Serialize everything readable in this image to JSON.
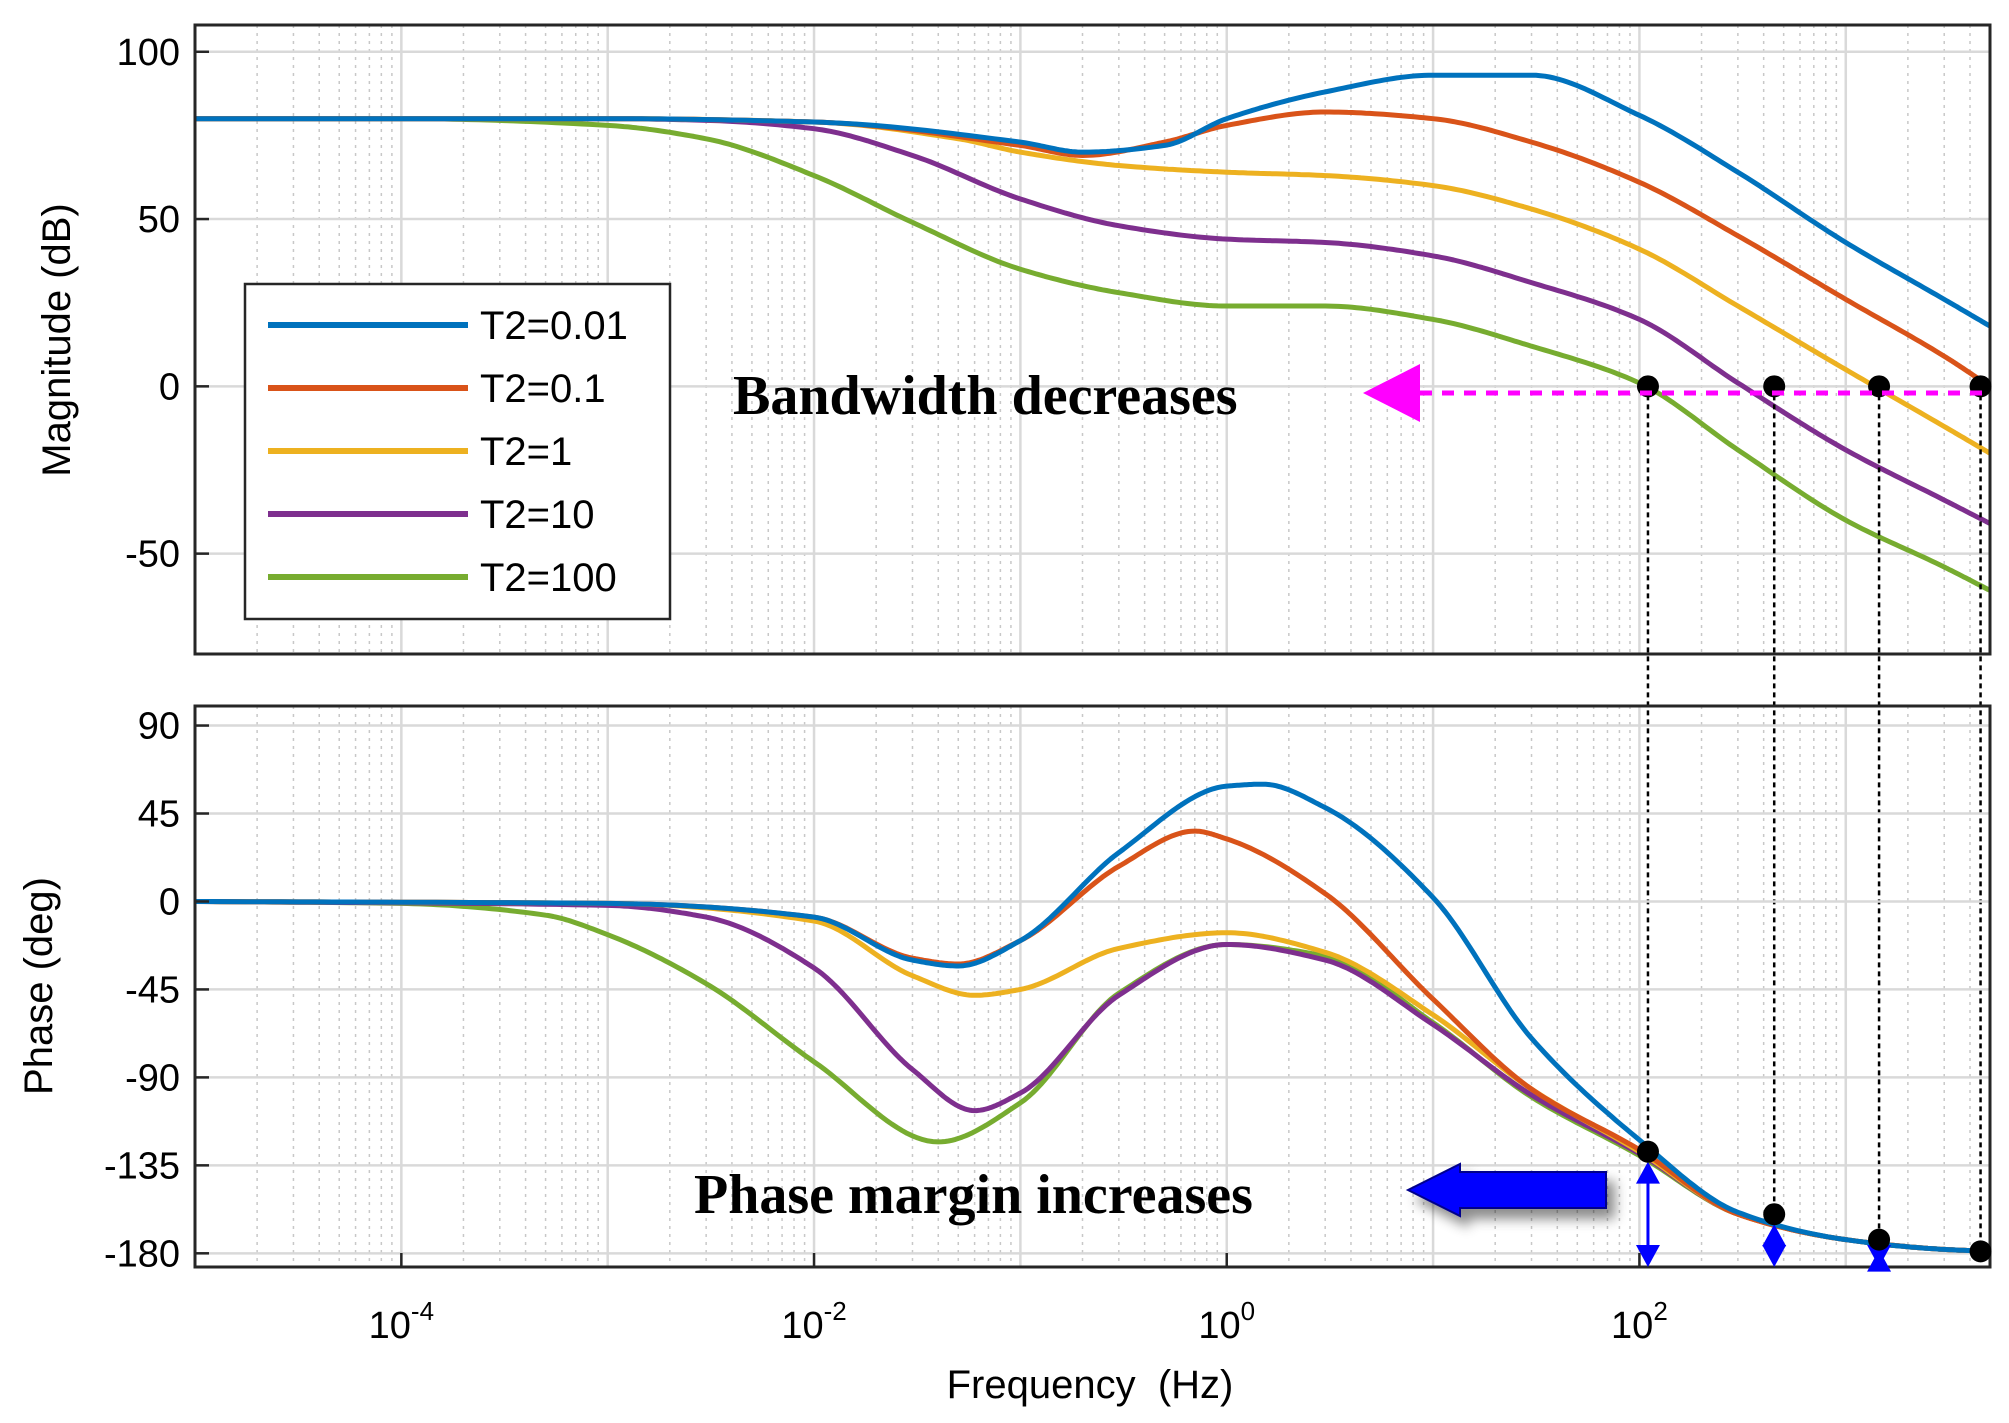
{
  "chart_data": [
    {
      "type": "line",
      "panel": "magnitude",
      "ylabel": "Magnitude (dB)",
      "xscale": "log",
      "xlim": [
        1e-05,
        5000
      ],
      "ylim": [
        -80,
        108
      ],
      "yticks": [
        100,
        50,
        0,
        -50
      ],
      "ytick_labels": [
        "100",
        "50",
        "0",
        "-50"
      ],
      "legend_position": "left-middle",
      "series": [
        {
          "name": "T2=0.01",
          "color": "#0072BD",
          "x": [
            1e-05,
            0.001,
            0.01,
            0.1,
            0.2,
            0.5,
            1,
            3,
            10,
            30,
            100,
            300,
            1000,
            3000,
            5000
          ],
          "y": [
            80,
            80,
            79,
            73,
            70,
            72,
            80,
            88,
            93,
            93,
            81,
            64,
            43,
            26,
            18
          ]
        },
        {
          "name": "T2=0.1",
          "color": "#D95319",
          "x": [
            1e-05,
            0.001,
            0.01,
            0.1,
            0.2,
            0.5,
            1,
            3,
            10,
            30,
            100,
            300,
            1000,
            3000,
            5000
          ],
          "y": [
            80,
            80,
            79,
            72,
            69,
            73,
            78,
            82,
            80,
            73,
            61,
            45,
            26,
            9,
            0
          ]
        },
        {
          "name": "T2=1",
          "color": "#EDB120",
          "x": [
            1e-05,
            0.001,
            0.01,
            0.05,
            0.1,
            0.3,
            1,
            3,
            10,
            30,
            100,
            300,
            1000,
            3000,
            5000
          ],
          "y": [
            80,
            80,
            79,
            74,
            70,
            66,
            64,
            63,
            60,
            53,
            41,
            24,
            5,
            -12,
            -20
          ]
        },
        {
          "name": "T2=10",
          "color": "#7E2F8E",
          "x": [
            1e-05,
            0.001,
            0.003,
            0.01,
            0.03,
            0.1,
            0.3,
            1,
            3,
            10,
            30,
            100,
            300,
            1000,
            3000,
            5000
          ],
          "y": [
            80,
            80,
            79.5,
            77,
            69,
            56,
            48,
            44,
            43,
            39,
            31,
            20,
            1,
            -19,
            -34,
            -41
          ]
        },
        {
          "name": "T2=100",
          "color": "#77AC30",
          "x": [
            1e-05,
            0.0001,
            0.001,
            0.003,
            0.01,
            0.03,
            0.1,
            0.3,
            1,
            3,
            10,
            30,
            100,
            300,
            1000,
            3000,
            5000
          ],
          "y": [
            80,
            80,
            78,
            74,
            63,
            49,
            35,
            28,
            24,
            24,
            20,
            12,
            1,
            -19,
            -40,
            -54,
            -61
          ]
        }
      ],
      "markers": [
        {
          "x": 110,
          "y": 0
        },
        {
          "x": 450,
          "y": 0
        },
        {
          "x": 1450,
          "y": 0
        },
        {
          "x": 4500,
          "y": 0
        }
      ],
      "annotation": {
        "text": "Bandwidth decreases",
        "arrow_color": "#FF00FF",
        "arrow_direction": "left"
      }
    },
    {
      "type": "line",
      "panel": "phase",
      "xlabel": "Frequency  (Hz)",
      "ylabel": "Phase (deg)",
      "xscale": "log",
      "xlim": [
        1e-05,
        5000
      ],
      "ylim": [
        -187,
        100
      ],
      "yticks": [
        90,
        45,
        0,
        -45,
        -90,
        -135,
        -180
      ],
      "ytick_labels": [
        "90",
        "45",
        "0",
        "-45",
        "-90",
        "-135",
        "-180"
      ],
      "xticks": [
        0.0001,
        0.01,
        1,
        100
      ],
      "xtick_bases": [
        "10",
        "10",
        "10",
        "10"
      ],
      "xtick_exponents": [
        "-4",
        "-2",
        "0",
        "2"
      ],
      "series": [
        {
          "name": "T2=0.01",
          "x": [
            1e-05,
            0.001,
            0.01,
            0.03,
            0.05,
            0.1,
            0.3,
            1,
            1.5,
            3,
            10,
            30,
            100,
            300,
            1000,
            3000,
            5000
          ],
          "y": [
            0,
            -1,
            -8,
            -30,
            -33,
            -20,
            25,
            59,
            60,
            48,
            2,
            -70,
            -122,
            -159,
            -173,
            -178,
            -179
          ]
        },
        {
          "name": "T2=0.1",
          "x": [
            1e-05,
            0.001,
            0.01,
            0.03,
            0.05,
            0.1,
            0.3,
            0.7,
            1,
            3,
            10,
            30,
            100,
            300,
            1000,
            3000,
            5000
          ],
          "y": [
            0,
            -1,
            -8,
            -29,
            -32,
            -20,
            18,
            36,
            32,
            4,
            -50,
            -96,
            -127,
            -160,
            -173,
            -178,
            -179
          ]
        },
        {
          "name": "T2=1",
          "x": [
            1e-05,
            0.001,
            0.01,
            0.03,
            0.06,
            0.1,
            0.3,
            1,
            3,
            10,
            30,
            100,
            300,
            1000,
            3000,
            5000
          ],
          "y": [
            0,
            -1,
            -10,
            -38,
            -48,
            -45,
            -24,
            -16,
            -26,
            -58,
            -96,
            -128,
            -160,
            -173,
            -178,
            -179
          ]
        },
        {
          "name": "T2=10",
          "x": [
            1e-05,
            0.001,
            0.003,
            0.01,
            0.03,
            0.06,
            0.1,
            0.3,
            1,
            3,
            10,
            30,
            100,
            300,
            1000,
            3000,
            5000
          ],
          "y": [
            0,
            -2,
            -8,
            -34,
            -86,
            -107,
            -98,
            -48,
            -22,
            -30,
            -63,
            -99,
            -129,
            -160,
            -173,
            -178,
            -179
          ]
        },
        {
          "name": "T2=100",
          "x": [
            1e-05,
            0.0001,
            0.0005,
            0.001,
            0.003,
            0.01,
            0.04,
            0.1,
            0.3,
            1,
            3,
            10,
            30,
            100,
            300,
            1000,
            3000,
            5000
          ],
          "y": [
            0,
            -1,
            -7,
            -17,
            -42,
            -82,
            -123,
            -103,
            -47,
            -22,
            -28,
            -62,
            -100,
            -130,
            -160,
            -173,
            -178,
            -179
          ]
        }
      ],
      "markers": [
        {
          "x": 110,
          "y": -128
        },
        {
          "x": 450,
          "y": -160
        },
        {
          "x": 1450,
          "y": -173
        },
        {
          "x": 4500,
          "y": -179
        }
      ],
      "annotation": {
        "text": "Phase margin increases",
        "arrow_color": "#0000FF",
        "arrow_direction": "left"
      }
    }
  ]
}
